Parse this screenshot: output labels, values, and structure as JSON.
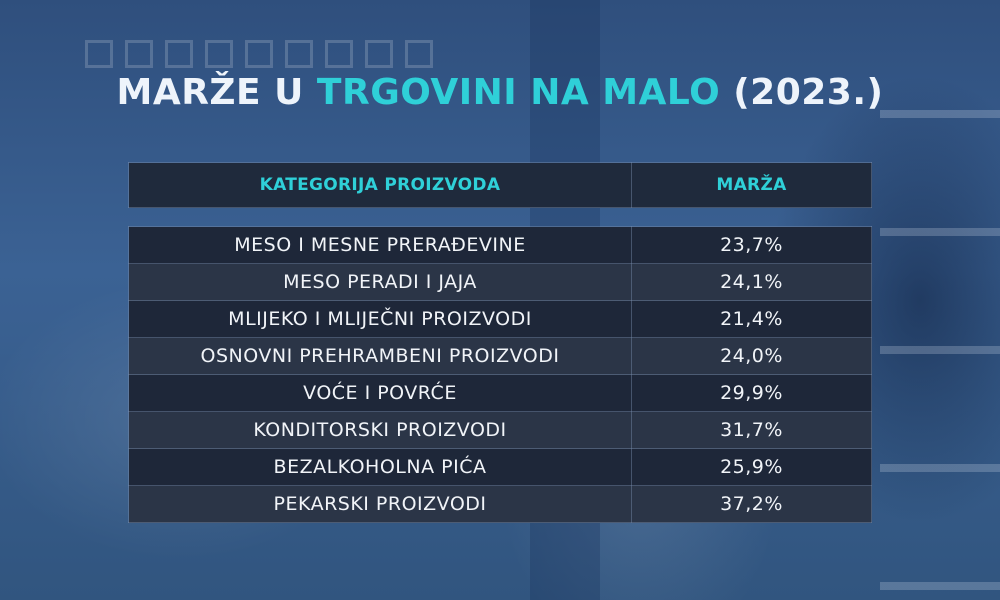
{
  "title": {
    "part1": "MARŽE U ",
    "accent": "TRGOVINI NA MALO",
    "part2": " (2023.)"
  },
  "table": {
    "headers": [
      "KATEGORIJA PROIZVODA",
      "MARŽA"
    ],
    "rows": [
      {
        "category": "MESO I MESNE PRERAĐEVINE",
        "margin": "23,7%"
      },
      {
        "category": "MESO PERADI I JAJA",
        "margin": "24,1%"
      },
      {
        "category": "MLIJEKO I MLIJEČNI PROIZVODI",
        "margin": "21,4%"
      },
      {
        "category": "OSNOVNI PREHRAMBENI PROIZVODI",
        "margin": "24,0%"
      },
      {
        "category": "VOĆE I POVRĆE",
        "margin": "29,9%"
      },
      {
        "category": "KONDITORSKI PROIZVODI",
        "margin": "31,7%"
      },
      {
        "category": "BEZALKOHOLNA PIĆA",
        "margin": "25,9%"
      },
      {
        "category": "PEKARSKI PROIZVODI",
        "margin": "37,2%"
      }
    ]
  },
  "colors": {
    "accent": "#2fd0d8",
    "header_bg": "#1f2a3c",
    "row_dark": "#1e2739",
    "row_light": "#2b3547"
  }
}
